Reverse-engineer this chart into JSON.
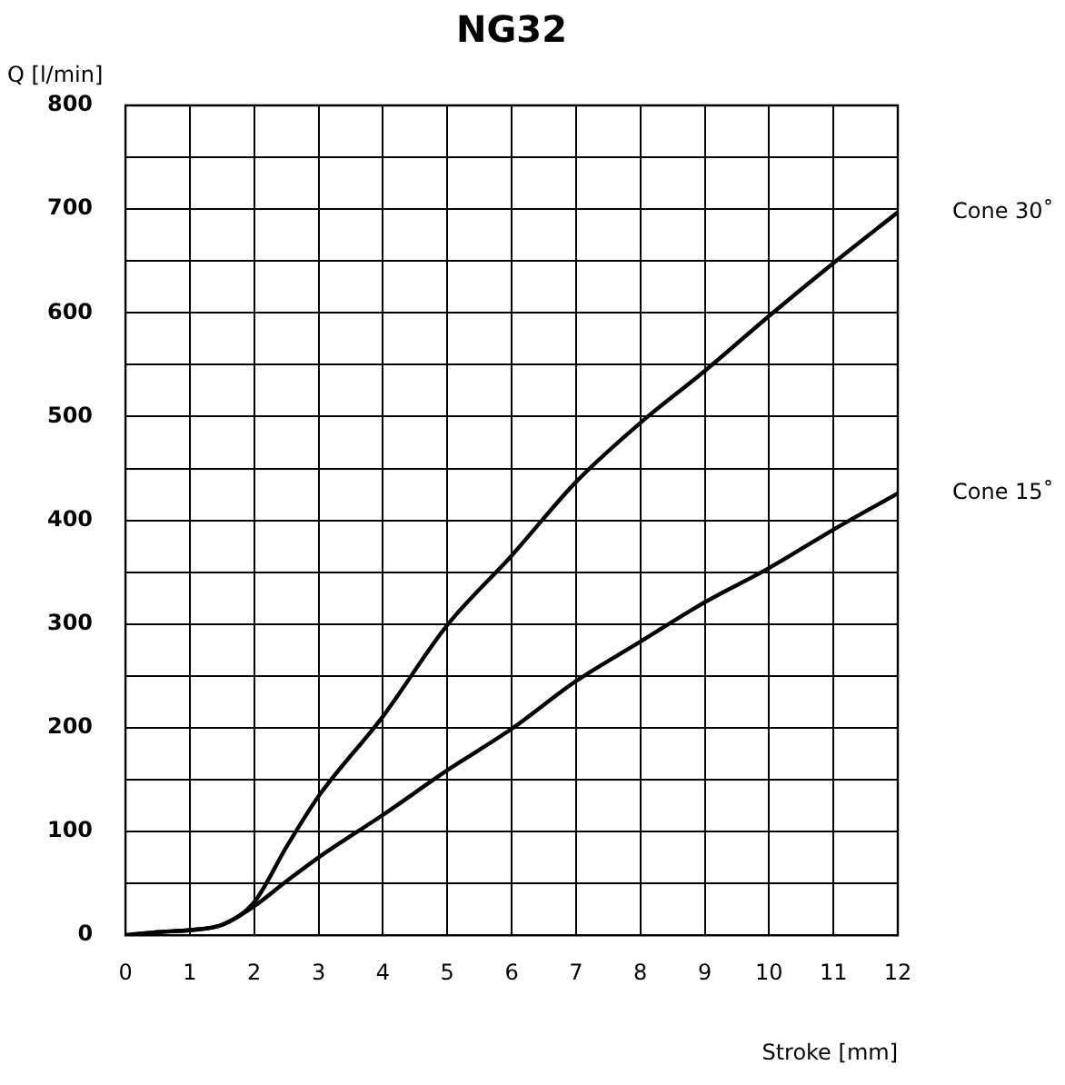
{
  "chart_data": {
    "type": "line",
    "title": "NG32",
    "xlabel": "Stroke [mm]",
    "ylabel": "Q [l/min]",
    "xlim": [
      0,
      12
    ],
    "xticks": [
      0,
      1,
      2,
      3,
      4,
      5,
      6,
      7,
      8,
      9,
      10,
      11,
      12
    ],
    "ylim": [
      0,
      800
    ],
    "yticks": [
      0,
      {
        "value": 50,
        "label": null
      },
      100,
      {
        "value": 150,
        "label": null
      },
      200,
      {
        "value": 250,
        "label": null
      },
      300,
      {
        "value": 350,
        "label": null
      },
      400,
      {
        "value": 450,
        "label": null
      },
      500,
      {
        "value": 550,
        "label": null
      },
      600,
      {
        "value": 650,
        "label": null
      },
      700,
      {
        "value": 750,
        "label": null
      },
      800
    ],
    "grid": true,
    "legend": false,
    "marker": "none",
    "line_style": "solid",
    "series": [
      {
        "name": "Cone 30˚",
        "color": "#000000",
        "x": [
          0,
          0.5,
          1,
          1.5,
          2,
          2.5,
          3,
          4,
          5,
          6,
          7,
          8,
          9,
          10,
          11,
          12
        ],
        "values": [
          0,
          3,
          5,
          10,
          32,
          85,
          134,
          211,
          299,
          366,
          437,
          494,
          544,
          597,
          648,
          697
        ]
      },
      {
        "name": "Cone 15˚",
        "color": "#000000",
        "x": [
          0,
          0.5,
          1,
          1.5,
          2,
          2.5,
          3,
          4,
          5,
          6,
          7,
          8,
          9,
          10,
          11,
          12
        ],
        "values": [
          0,
          3,
          5,
          10,
          28,
          52,
          75,
          116,
          159,
          199,
          245,
          283,
          321,
          354,
          391,
          426
        ]
      }
    ]
  }
}
